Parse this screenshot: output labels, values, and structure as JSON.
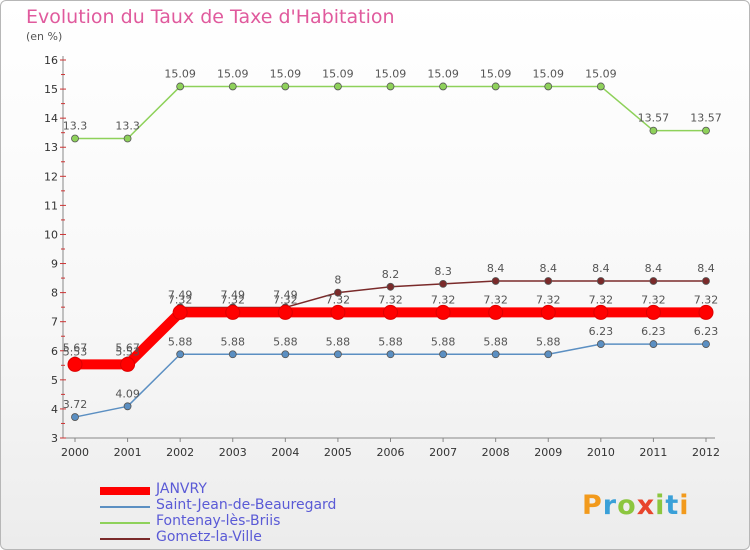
{
  "chart_data": {
    "type": "line",
    "title": "Evolution du Taux de Taxe d'Habitation",
    "subtitle": "(en %)",
    "x": [
      "2000",
      "2001",
      "2002",
      "2003",
      "2004",
      "2005",
      "2006",
      "2007",
      "2008",
      "2009",
      "2010",
      "2011",
      "2012"
    ],
    "ylim": [
      3,
      16
    ],
    "yticks": [
      3,
      4,
      5,
      6,
      7,
      8,
      9,
      10,
      11,
      12,
      13,
      14,
      15,
      16
    ],
    "grid": false,
    "legend_position": "bottom-left",
    "series": [
      {
        "name": "JANVRY",
        "color": "#ff0000",
        "values": [
          5.53,
          5.53,
          7.32,
          7.32,
          7.32,
          7.32,
          7.32,
          7.32,
          7.32,
          7.32,
          7.32,
          7.32,
          7.32
        ],
        "labels": [
          "5.53",
          "5.53",
          "7.32",
          "7.32",
          "7.32",
          "7.32",
          "7.32",
          "7.32",
          "7.32",
          "7.32",
          "7.32",
          "7.32",
          "7.32"
        ]
      },
      {
        "name": "Saint-Jean-de-Beauregard",
        "color": "#5b8fc2",
        "values": [
          3.72,
          4.09,
          5.88,
          5.88,
          5.88,
          5.88,
          5.88,
          5.88,
          5.88,
          5.88,
          6.23,
          6.23,
          6.23
        ],
        "labels": [
          "3.72",
          "4.09",
          "5.88",
          "5.88",
          "5.88",
          "5.88",
          "5.88",
          "5.88",
          "5.88",
          "5.88",
          "6.23",
          "6.23",
          "6.23"
        ]
      },
      {
        "name": "Fontenay-lès-Briis",
        "color": "#8ed15a",
        "values": [
          13.3,
          13.3,
          15.09,
          15.09,
          15.09,
          15.09,
          15.09,
          15.09,
          15.09,
          15.09,
          15.09,
          13.57,
          13.57
        ],
        "labels": [
          "13.3",
          "13.3",
          "15.09",
          "15.09",
          "15.09",
          "15.09",
          "15.09",
          "15.09",
          "15.09",
          "15.09",
          "15.09",
          "13.57",
          "13.57"
        ]
      },
      {
        "name": "Gometz-la-Ville",
        "color": "#7a2a2a",
        "values": [
          5.67,
          5.67,
          7.49,
          7.49,
          7.49,
          8,
          8.2,
          8.3,
          8.4,
          8.4,
          8.4,
          8.4,
          8.4
        ],
        "labels": [
          "5.67",
          "5.67",
          "7.49",
          "7.49",
          "7.49",
          "8",
          "8.2",
          "8.3",
          "8.4",
          "8.4",
          "8.4",
          "8.4",
          "8.4"
        ]
      }
    ]
  },
  "logo": {
    "letters": [
      "P",
      "r",
      "o",
      "x",
      "i",
      "t",
      "i"
    ],
    "colors": [
      "#f29a1c",
      "#3aa0d8",
      "#8cc63f",
      "#e8452c",
      "#8cc63f",
      "#3aa0d8",
      "#f29a1c"
    ]
  }
}
